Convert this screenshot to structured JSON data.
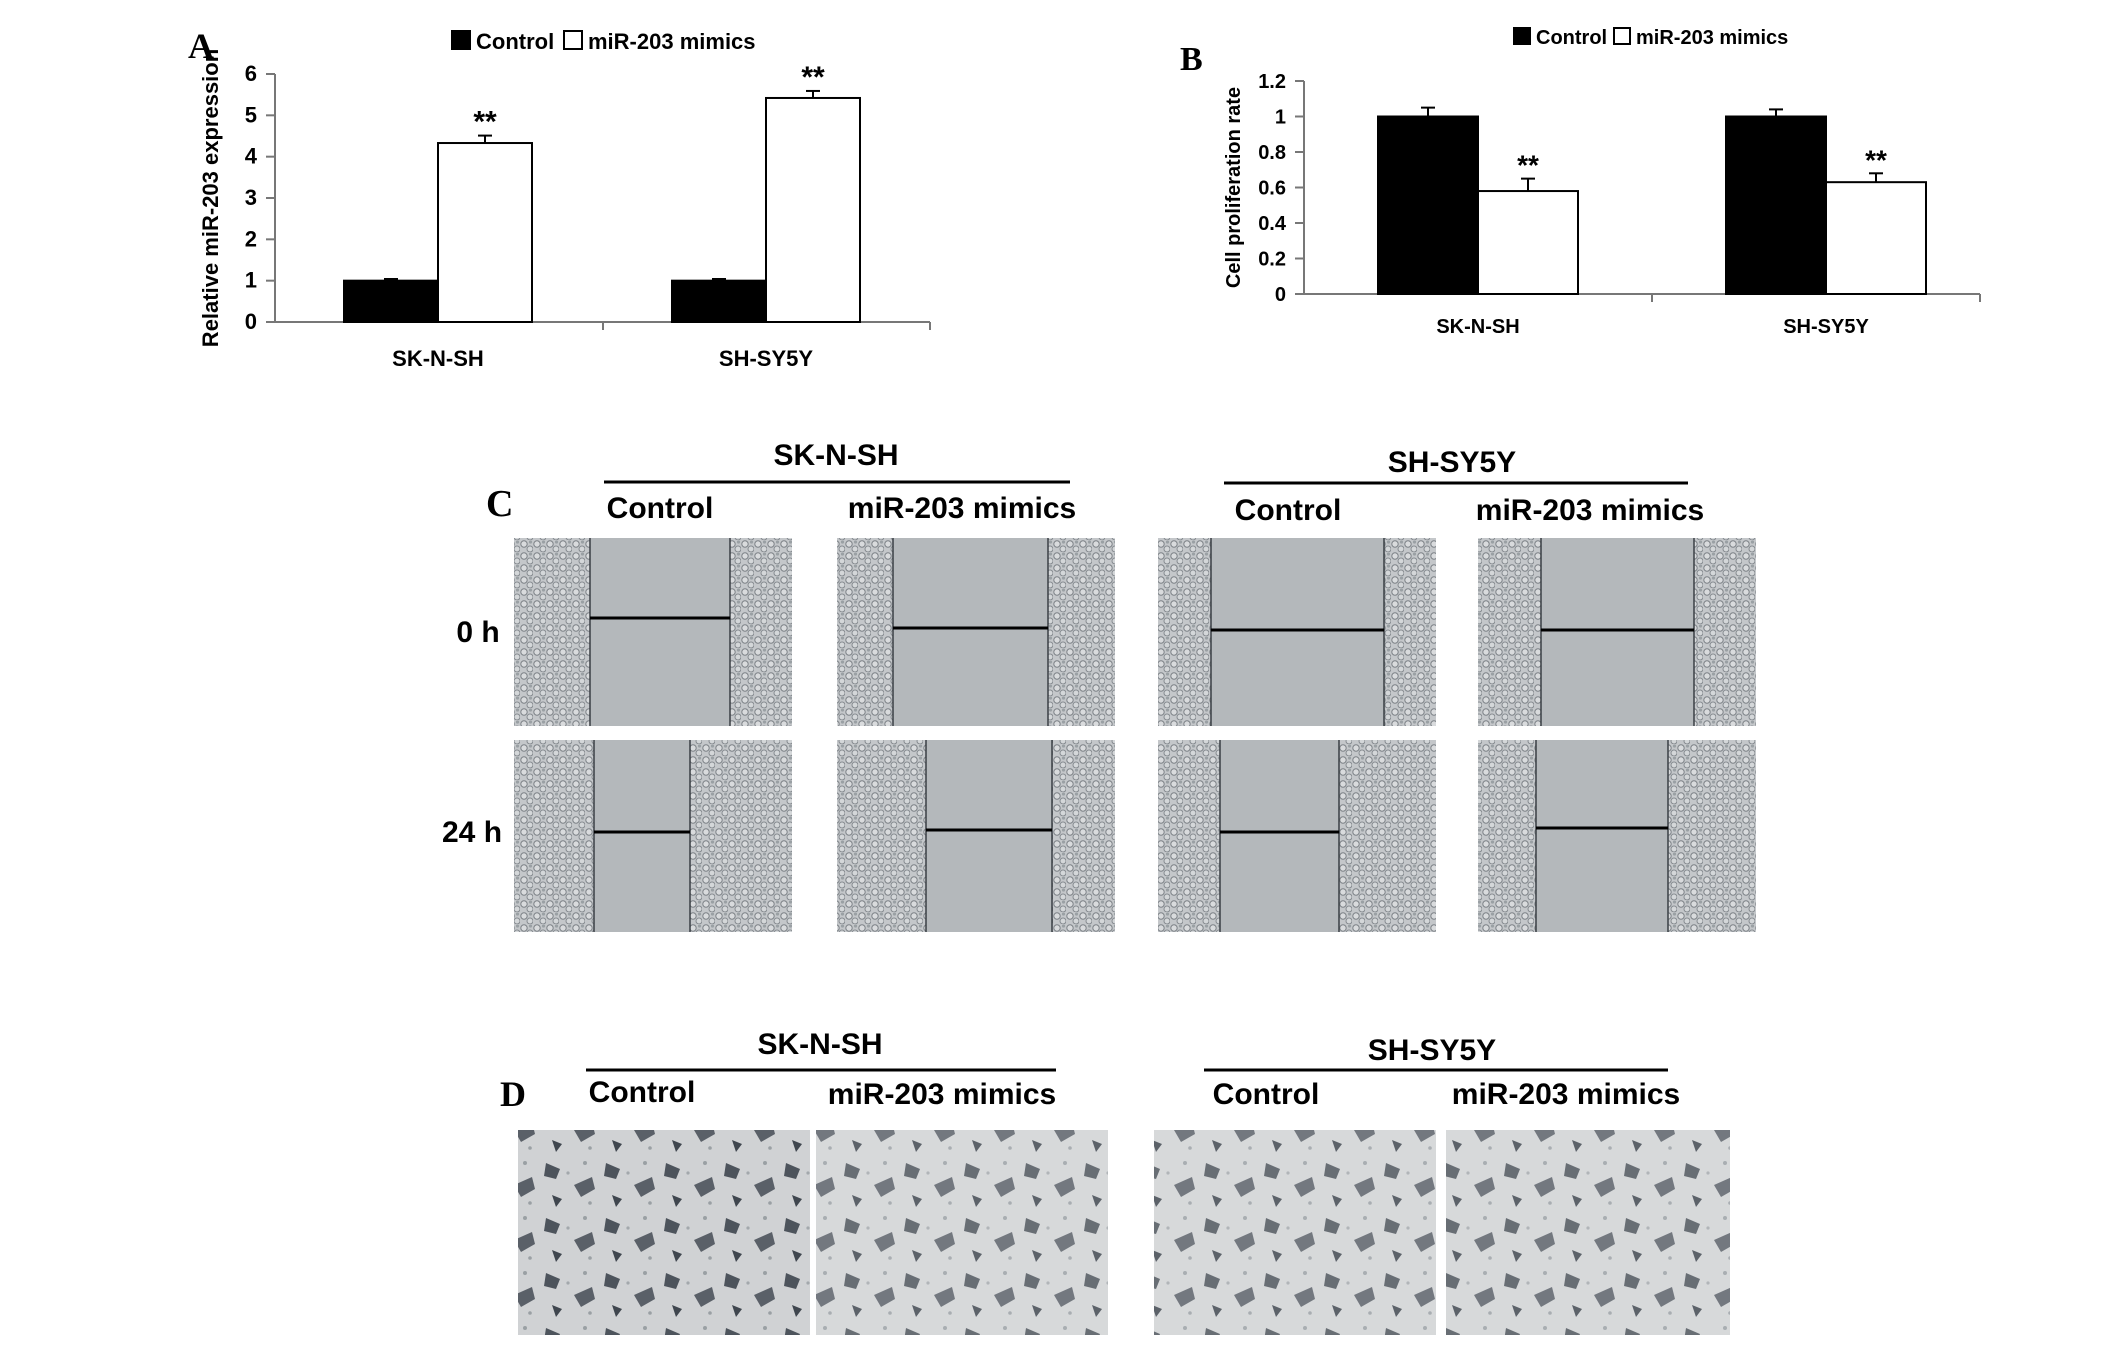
{
  "panels": {
    "A": "A",
    "B": "B",
    "C": "C",
    "D": "D"
  },
  "colors": {
    "control": "#000000",
    "mimics": "#ffffff",
    "culture_bg": "#b4b8bb",
    "cells": "#8d9296",
    "stain": "#4a5058"
  },
  "chart_data": [
    {
      "type": "bar",
      "panel": "A",
      "categories": [
        "SK-N-SH",
        "SH-SY5Y"
      ],
      "series": [
        {
          "name": "Control",
          "values": [
            1.0,
            1.0
          ],
          "errors": [
            0.04,
            0.04
          ]
        },
        {
          "name": "miR-203 mimics",
          "values": [
            4.33,
            5.42
          ],
          "errors": [
            0.18,
            0.17
          ]
        }
      ],
      "ylabel": "Relative miR-203 expression",
      "ylim": [
        0,
        6
      ],
      "yticks": [
        "0",
        "1",
        "2",
        "3",
        "4",
        "5",
        "6"
      ],
      "annotations": [
        "**",
        "**"
      ],
      "legend": "top"
    },
    {
      "type": "bar",
      "panel": "B",
      "categories": [
        "SK-N-SH",
        "SH-SY5Y"
      ],
      "series": [
        {
          "name": "Control",
          "values": [
            1.0,
            1.0
          ],
          "errors": [
            0.05,
            0.04
          ]
        },
        {
          "name": "miR-203 mimics",
          "values": [
            0.58,
            0.63
          ],
          "errors": [
            0.07,
            0.05
          ]
        }
      ],
      "ylabel": "Cell proliferation rate",
      "ylim": [
        0,
        1.2
      ],
      "yticks": [
        "0",
        "0.2",
        "0.4",
        "0.6",
        "0.8",
        "1",
        "1.2"
      ],
      "annotations": [
        "**",
        "**"
      ],
      "legend": "top"
    }
  ],
  "panelC": {
    "groups": [
      "SK-N-SH",
      "SH-SY5Y"
    ],
    "conditions": [
      "Control",
      "miR-203 mimics",
      "Control",
      "miR-203 mimics"
    ],
    "times": [
      "0 h",
      "24 h"
    ]
  },
  "panelD": {
    "groups": [
      "SK-N-SH",
      "SH-SY5Y"
    ],
    "conditions": [
      "Control",
      "miR-203 mimics",
      "Control",
      "miR-203 mimics"
    ]
  }
}
